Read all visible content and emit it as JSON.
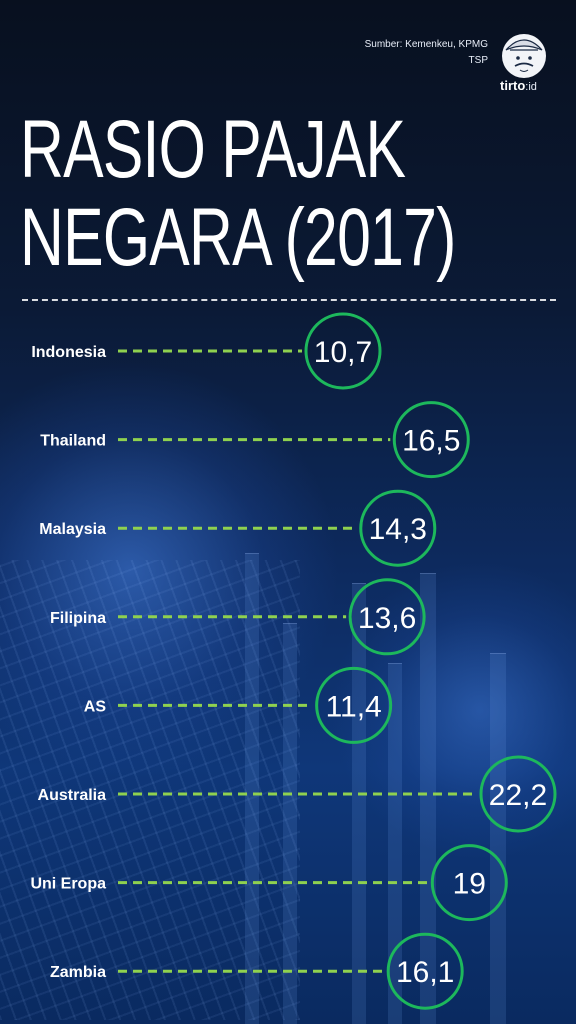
{
  "header": {
    "source": "Sumber: Kemenkeu, KPMG",
    "author": "TSP",
    "logo_text": "tirto",
    "logo_suffix": "id"
  },
  "title_line1": "RASIO PAJAK",
  "title_line2": "NEGARA (2017)",
  "colors": {
    "accent": "#8fd14f",
    "circle": "#1db85c",
    "text": "#ffffff"
  },
  "chart_data": {
    "type": "bar",
    "orientation": "horizontal",
    "title": "RASIO PAJAK NEGARA (2017)",
    "categories": [
      "Indonesia",
      "Thailand",
      "Malaysia",
      "Filipina",
      "AS",
      "Australia",
      "Uni Eropa",
      "Zambia"
    ],
    "values": [
      10.7,
      16.5,
      14.3,
      13.6,
      11.4,
      22.2,
      19,
      16.1
    ],
    "value_labels": [
      "10,7",
      "16,5",
      "14,3",
      "13,6",
      "11,4",
      "22,2",
      "19",
      "16,1"
    ],
    "xlabel": "",
    "ylabel": "",
    "xlim": [
      0,
      22.2
    ],
    "grid": false
  }
}
